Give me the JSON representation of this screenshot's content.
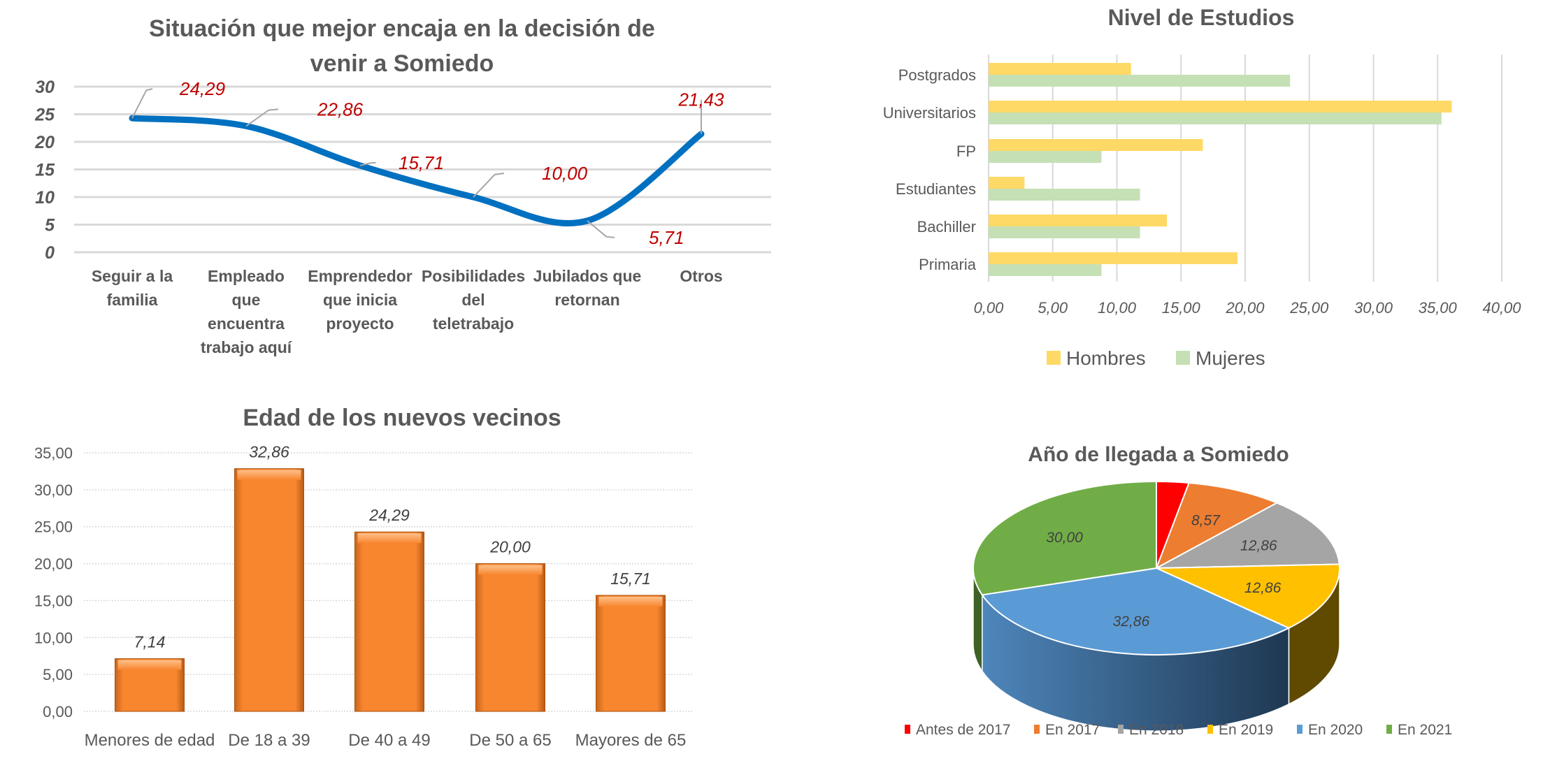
{
  "chart_data": [
    {
      "type": "line",
      "title_lines": [
        "Situación que mejor encaja en la decisión de",
        "venir a Somiedo"
      ],
      "categories": [
        [
          "Seguir a la",
          "familia"
        ],
        [
          "Empleado",
          "que",
          "encuentra",
          "trabajo aquí"
        ],
        [
          "Emprendedor",
          "que inicia",
          "proyecto"
        ],
        [
          "Posibilidades",
          "del",
          "teletrabajo"
        ],
        [
          "Jubilados que",
          "retornan"
        ],
        [
          "Otros"
        ]
      ],
      "values": [
        24.29,
        22.86,
        15.71,
        10.0,
        5.71,
        21.43
      ],
      "data_labels": [
        "24,29",
        "22,86",
        "15,71",
        "10,00",
        "5,71",
        "21,43"
      ],
      "yticks": [
        "0",
        "5",
        "10",
        "15",
        "20",
        "25",
        "30"
      ],
      "ylim": [
        0,
        30
      ],
      "grid": true,
      "smooth": true,
      "colors": {
        "line": "#0070c0",
        "label": "#c00000"
      }
    },
    {
      "type": "bar",
      "orientation": "horizontal",
      "title": "Nivel de Estudios",
      "categories": [
        "Postgrados",
        "Universitarios",
        "FP",
        "Estudiantes",
        "Bachiller",
        "Primaria"
      ],
      "series": [
        {
          "name": "Hombres",
          "values": [
            11.1,
            36.1,
            16.7,
            2.8,
            13.9,
            19.4
          ],
          "color": "#ffd966"
        },
        {
          "name": "Mujeres",
          "values": [
            23.5,
            35.3,
            8.8,
            11.8,
            11.8,
            8.8
          ],
          "color": "#c5e0b4"
        }
      ],
      "xticks": [
        "0,00",
        "5,00",
        "10,00",
        "15,00",
        "20,00",
        "25,00",
        "30,00",
        "35,00",
        "40,00"
      ],
      "xlim": [
        0,
        40
      ],
      "grid": true,
      "legend": "bottom"
    },
    {
      "type": "bar",
      "title": "Edad de los nuevos vecinos",
      "categories": [
        "Menores de edad",
        "De 18 a 39",
        "De 40 a 49",
        "De 50 a 65",
        "Mayores de 65"
      ],
      "values": [
        7.14,
        32.86,
        24.29,
        20.0,
        15.71
      ],
      "data_labels": [
        "7,14",
        "32,86",
        "24,29",
        "20,00",
        "15,71"
      ],
      "yticks": [
        "0,00",
        "5,00",
        "10,00",
        "15,00",
        "20,00",
        "25,00",
        "30,00",
        "35,00"
      ],
      "ylim": [
        0,
        35
      ],
      "grid": true,
      "color": "#f8862f"
    },
    {
      "type": "pie",
      "style": "3d",
      "title": "Año de llegada a Somiedo",
      "categories": [
        "Antes de 2017",
        "En 2017",
        "En 2018",
        "En 2019",
        "En 2020",
        "En 2021"
      ],
      "values": [
        2.85,
        8.57,
        12.86,
        12.86,
        32.86,
        30.0
      ],
      "data_labels": [
        "",
        "8,57",
        "12,86",
        "12,86",
        "32,86",
        "30,00"
      ],
      "colors": [
        "#ff0000",
        "#ed7d31",
        "#a5a5a5",
        "#ffc000",
        "#5b9bd5",
        "#70ad47"
      ],
      "legend": "bottom"
    }
  ]
}
